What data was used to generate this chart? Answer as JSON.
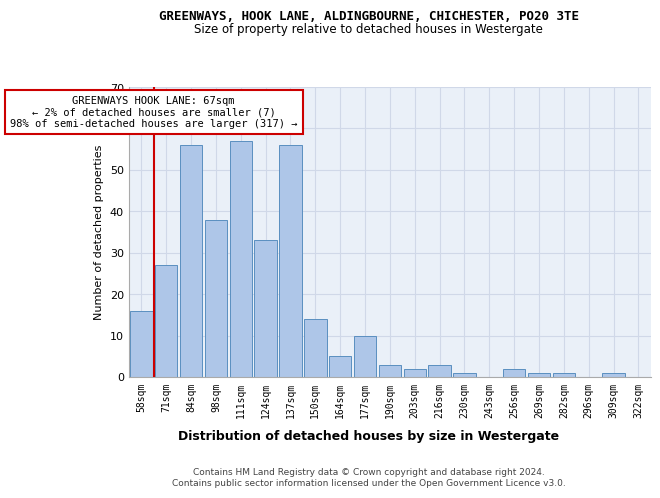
{
  "title1": "GREENWAYS, HOOK LANE, ALDINGBOURNE, CHICHESTER, PO20 3TE",
  "title2": "Size of property relative to detached houses in Westergate",
  "xlabel": "Distribution of detached houses by size in Westergate",
  "ylabel": "Number of detached properties",
  "categories": [
    "58sqm",
    "71sqm",
    "84sqm",
    "98sqm",
    "111sqm",
    "124sqm",
    "137sqm",
    "150sqm",
    "164sqm",
    "177sqm",
    "190sqm",
    "203sqm",
    "216sqm",
    "230sqm",
    "243sqm",
    "256sqm",
    "269sqm",
    "282sqm",
    "296sqm",
    "309sqm",
    "322sqm"
  ],
  "values": [
    16,
    27,
    56,
    38,
    57,
    33,
    56,
    14,
    5,
    10,
    3,
    2,
    3,
    1,
    0,
    2,
    1,
    1,
    0,
    1,
    0
  ],
  "bar_color": "#aec6e8",
  "bar_edge_color": "#5a8fc0",
  "marker_color": "#cc0000",
  "ylim": [
    0,
    70
  ],
  "yticks": [
    0,
    10,
    20,
    30,
    40,
    50,
    60,
    70
  ],
  "annotation_text": "GREENWAYS HOOK LANE: 67sqm\n← 2% of detached houses are smaller (7)\n98% of semi-detached houses are larger (317) →",
  "annotation_box_color": "#ffffff",
  "annotation_box_edge": "#cc0000",
  "footer1": "Contains HM Land Registry data © Crown copyright and database right 2024.",
  "footer2": "Contains public sector information licensed under the Open Government Licence v3.0.",
  "grid_color": "#d0d8e8",
  "background_color": "#eaf0f8"
}
